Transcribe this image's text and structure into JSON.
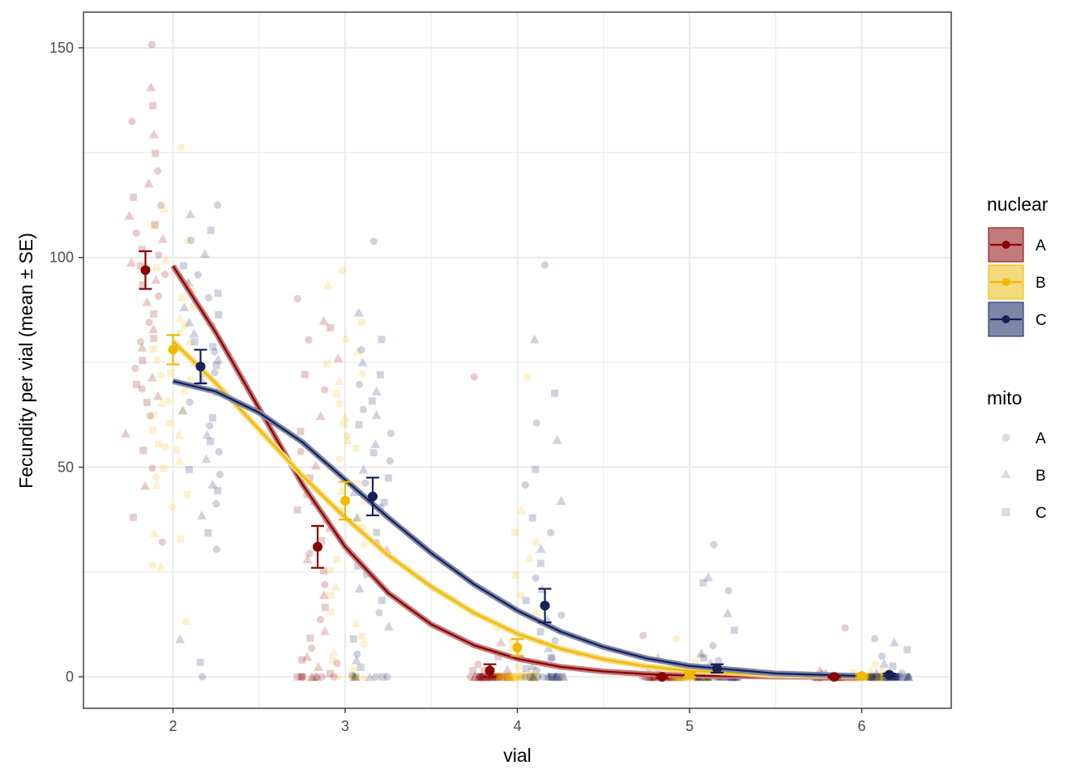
{
  "chart_data": {
    "type": "scatter",
    "title": "",
    "xlabel": "vial",
    "ylabel": "Fecundity per vial (mean ± SE)",
    "xlim": [
      1.48,
      6.52
    ],
    "ylim": [
      -7.5,
      158.5
    ],
    "x_ticks": [
      2,
      3,
      4,
      5,
      6
    ],
    "x_tick_labels": [
      "2",
      "3",
      "4",
      "5",
      "6"
    ],
    "y_ticks": [
      0,
      50,
      100,
      150
    ],
    "y_tick_labels": [
      "0",
      "50",
      "100",
      "150"
    ],
    "grid": true,
    "jitter_width": 0.12,
    "group_offsets": {
      "A": -0.16,
      "B": 0.0,
      "C": 0.16
    },
    "series": [
      {
        "name": "A",
        "color": "#8B0000",
        "fill_color": "#C27A7A",
        "mean": [
          {
            "x": 2,
            "y": 97,
            "se": 4.5
          },
          {
            "x": 3,
            "y": 31,
            "se": 5
          },
          {
            "x": 4,
            "y": 1.5,
            "se": 1.5
          },
          {
            "x": 5,
            "y": 0,
            "se": 0.3
          },
          {
            "x": 6,
            "y": 0,
            "se": 0.2
          }
        ],
        "fit": [
          [
            2.0,
            98
          ],
          [
            2.25,
            82
          ],
          [
            2.5,
            64
          ],
          [
            2.75,
            46
          ],
          [
            3.0,
            31
          ],
          [
            3.25,
            20
          ],
          [
            3.5,
            12.5
          ],
          [
            3.75,
            7.5
          ],
          [
            4.0,
            4.3
          ],
          [
            4.25,
            2.4
          ],
          [
            4.5,
            1.3
          ],
          [
            4.75,
            0.65
          ],
          [
            5.0,
            0.3
          ],
          [
            5.5,
            0.05
          ],
          [
            6.0,
            0.0
          ]
        ],
        "raw": [
          {
            "x": 2,
            "values": [
              151,
              140,
              136,
              132,
              129,
              125,
              121,
              118,
              114,
              112,
              110,
              108,
              106,
              104,
              102,
              101,
              99,
              98,
              96,
              95,
              93,
              91,
              89,
              87,
              85,
              83,
              81,
              80,
              78,
              76,
              74,
              72,
              70,
              69,
              67,
              65,
              62,
              58,
              54,
              50,
              45,
              38,
              32
            ]
          },
          {
            "x": 3,
            "values": [
              90,
              85,
              83,
              80,
              76,
              72,
              68,
              62,
              58,
              54,
              50,
              47,
              43,
              42,
              40,
              37,
              35,
              32,
              30,
              28,
              25,
              22,
              19,
              17,
              14,
              11,
              9,
              7,
              5,
              4,
              3,
              2,
              1,
              0,
              0,
              0,
              0,
              0,
              0,
              0,
              0,
              0,
              0
            ]
          },
          {
            "x": 4,
            "values": [
              72,
              8,
              5,
              3,
              2,
              1,
              1,
              0,
              0,
              0,
              0,
              0,
              0,
              0,
              0,
              0,
              0,
              0,
              0,
              0,
              0,
              0,
              0,
              0,
              0,
              0,
              0,
              0,
              0,
              0,
              0,
              0,
              0,
              0,
              0,
              0,
              0,
              0,
              0,
              0,
              0,
              0,
              0
            ]
          },
          {
            "x": 5,
            "values": [
              10,
              4,
              2,
              1,
              1,
              0,
              0,
              0,
              0,
              0,
              0,
              0,
              0,
              0,
              0,
              0,
              0,
              0,
              0,
              0,
              0,
              0,
              0,
              0,
              0,
              0,
              0,
              0,
              0,
              0,
              0,
              0,
              0,
              0,
              0,
              0,
              0,
              0,
              0,
              0,
              0,
              0,
              0
            ]
          },
          {
            "x": 6,
            "values": [
              12,
              2,
              1,
              0,
              0,
              0,
              0,
              0,
              0,
              0,
              0,
              0,
              0,
              0,
              0,
              0,
              0,
              0,
              0,
              0,
              0,
              0,
              0,
              0,
              0,
              0,
              0,
              0,
              0,
              0,
              0,
              0,
              0,
              0,
              0,
              0,
              0,
              0,
              0,
              0,
              0,
              0,
              0
            ]
          }
        ]
      },
      {
        "name": "B",
        "color": "#F0B800",
        "fill_color": "#F5D97A",
        "mean": [
          {
            "x": 2,
            "y": 78,
            "se": 3.5
          },
          {
            "x": 3,
            "y": 42,
            "se": 4.5
          },
          {
            "x": 4,
            "y": 7,
            "se": 2
          },
          {
            "x": 5,
            "y": 0.5,
            "se": 0.5
          },
          {
            "x": 6,
            "y": 0.2,
            "se": 0.3
          }
        ],
        "fit": [
          [
            2.0,
            80
          ],
          [
            2.25,
            70
          ],
          [
            2.5,
            59
          ],
          [
            2.75,
            48
          ],
          [
            3.0,
            38
          ],
          [
            3.25,
            29
          ],
          [
            3.5,
            21.5
          ],
          [
            3.75,
            15.2
          ],
          [
            4.0,
            10.3
          ],
          [
            4.25,
            6.7
          ],
          [
            4.5,
            4.2
          ],
          [
            4.75,
            2.5
          ],
          [
            5.0,
            1.4
          ],
          [
            5.5,
            0.4
          ],
          [
            6.0,
            0.1
          ]
        ],
        "raw": [
          {
            "x": 2,
            "values": [
              126,
              112,
              108,
              104,
              100,
              97,
              94,
              92,
              90,
              88,
              86,
              84,
              82,
              80,
              78,
              76,
              75,
              73,
              71,
              70,
              68,
              66,
              64,
              62,
              60,
              58,
              56,
              54,
              52,
              50,
              48,
              46,
              44,
              40,
              34,
              33,
              27,
              26,
              13,
              72,
              65,
              59,
              55
            ]
          },
          {
            "x": 3,
            "values": [
              97,
              94,
              85,
              80,
              78,
              75,
              72,
              70,
              68,
              65,
              62,
              60,
              58,
              56,
              54,
              52,
              50,
              48,
              46,
              44,
              42,
              40,
              38,
              35,
              32,
              30,
              28,
              25,
              22,
              19,
              16,
              13,
              10,
              8,
              6,
              4,
              2,
              0,
              0,
              0,
              0,
              0,
              0
            ]
          },
          {
            "x": 4,
            "values": [
              72,
              40,
              35,
              32,
              28,
              24,
              20,
              16,
              12,
              9,
              7,
              5,
              3,
              2,
              1,
              0,
              0,
              0,
              0,
              0,
              0,
              0,
              0,
              0,
              0,
              0,
              0,
              0,
              0,
              0,
              0,
              0,
              0,
              0,
              0,
              0,
              0,
              0,
              0,
              0,
              0,
              0,
              0
            ]
          },
          {
            "x": 5,
            "values": [
              9,
              5,
              3,
              2,
              1,
              1,
              0,
              0,
              0,
              0,
              0,
              0,
              0,
              0,
              0,
              0,
              0,
              0,
              0,
              0,
              0,
              0,
              0,
              0,
              0,
              0,
              0,
              0,
              0,
              0,
              0,
              0,
              0,
              0,
              0,
              0,
              0,
              0,
              0,
              0,
              0,
              0,
              0
            ]
          },
          {
            "x": 6,
            "values": [
              3,
              2,
              1,
              1,
              0,
              0,
              0,
              0,
              0,
              0,
              0,
              0,
              0,
              0,
              0,
              0,
              0,
              0,
              0,
              0,
              0,
              0,
              0,
              0,
              0,
              0,
              0,
              0,
              0,
              0,
              0,
              0,
              0,
              0,
              0,
              0,
              0,
              0,
              0,
              0,
              0,
              0,
              0
            ]
          }
        ]
      },
      {
        "name": "C",
        "color": "#14215A",
        "fill_color": "#7E86A8",
        "mean": [
          {
            "x": 2,
            "y": 74,
            "se": 4
          },
          {
            "x": 3,
            "y": 43,
            "se": 4.5
          },
          {
            "x": 4,
            "y": 17,
            "se": 4
          },
          {
            "x": 5,
            "y": 2,
            "se": 1
          },
          {
            "x": 6,
            "y": 0.5,
            "se": 0.3
          }
        ],
        "fit": [
          [
            2.0,
            70.5
          ],
          [
            2.25,
            68
          ],
          [
            2.5,
            63
          ],
          [
            2.75,
            56
          ],
          [
            3.0,
            47
          ],
          [
            3.25,
            38
          ],
          [
            3.5,
            29.5
          ],
          [
            3.75,
            22
          ],
          [
            4.0,
            15.8
          ],
          [
            4.25,
            10.8
          ],
          [
            4.5,
            7.1
          ],
          [
            4.75,
            4.4
          ],
          [
            5.0,
            2.6
          ],
          [
            5.5,
            0.8
          ],
          [
            6.0,
            0.2
          ]
        ],
        "raw": [
          {
            "x": 2,
            "values": [
              112,
              110,
              107,
              104,
              101,
              98,
              96,
              94,
              92,
              90,
              88,
              86,
              84,
              82,
              80,
              78,
              76,
              74,
              72,
              70,
              68,
              66,
              64,
              62,
              60,
              58,
              56,
              54,
              52,
              50,
              48,
              46,
              44,
              41,
              38,
              34,
              31,
              9,
              4,
              0,
              85,
              79,
              73
            ]
          },
          {
            "x": 3,
            "values": [
              104,
              87,
              81,
              78,
              75,
              72,
              70,
              68,
              66,
              64,
              62,
              60,
              58,
              56,
              54,
              52,
              50,
              48,
              46,
              44,
              42,
              40,
              38,
              35,
              32,
              30,
              27,
              24,
              21,
              18,
              15,
              12,
              9,
              6,
              4,
              2,
              1,
              0,
              0,
              0,
              0,
              0,
              0
            ]
          },
          {
            "x": 4,
            "values": [
              98,
              81,
              68,
              61,
              56,
              50,
              46,
              42,
              38,
              34,
              30,
              27,
              24,
              21,
              18,
              15,
              13,
              11,
              9,
              7,
              5,
              4,
              3,
              2,
              1,
              0,
              0,
              0,
              0,
              0,
              0,
              0,
              0,
              0,
              0,
              0,
              0,
              0,
              0,
              0,
              0,
              0,
              0
            ]
          },
          {
            "x": 5,
            "values": [
              31,
              24,
              23,
              21,
              15,
              11,
              8,
              6,
              5,
              4,
              3,
              2,
              1,
              0,
              0,
              0,
              0,
              0,
              0,
              0,
              0,
              0,
              0,
              0,
              0,
              0,
              0,
              0,
              0,
              0,
              0,
              0,
              0,
              0,
              0,
              0,
              0,
              0,
              0,
              0,
              0,
              0,
              0
            ]
          },
          {
            "x": 6,
            "values": [
              9,
              8,
              6,
              5,
              3,
              2,
              1,
              1,
              0,
              0,
              0,
              0,
              0,
              0,
              0,
              0,
              0,
              0,
              0,
              0,
              0,
              0,
              0,
              0,
              0,
              0,
              0,
              0,
              0,
              0,
              0,
              0,
              0,
              0,
              0,
              0,
              0,
              0,
              0,
              0,
              0,
              0,
              0
            ]
          }
        ]
      }
    ],
    "legends": [
      {
        "title": "nuclear",
        "placement": "right",
        "entries": [
          {
            "label": "A",
            "color": "#8B0000",
            "fill_color": "#C27A7A"
          },
          {
            "label": "B",
            "color": "#F0B800",
            "fill_color": "#F5D97A"
          },
          {
            "label": "C",
            "color": "#14215A",
            "fill_color": "#7E86A8"
          }
        ]
      },
      {
        "title": "mito",
        "placement": "right",
        "entries": [
          {
            "label": "A",
            "shape": "circle"
          },
          {
            "label": "B",
            "shape": "triangle"
          },
          {
            "label": "C",
            "shape": "square"
          }
        ]
      }
    ]
  }
}
